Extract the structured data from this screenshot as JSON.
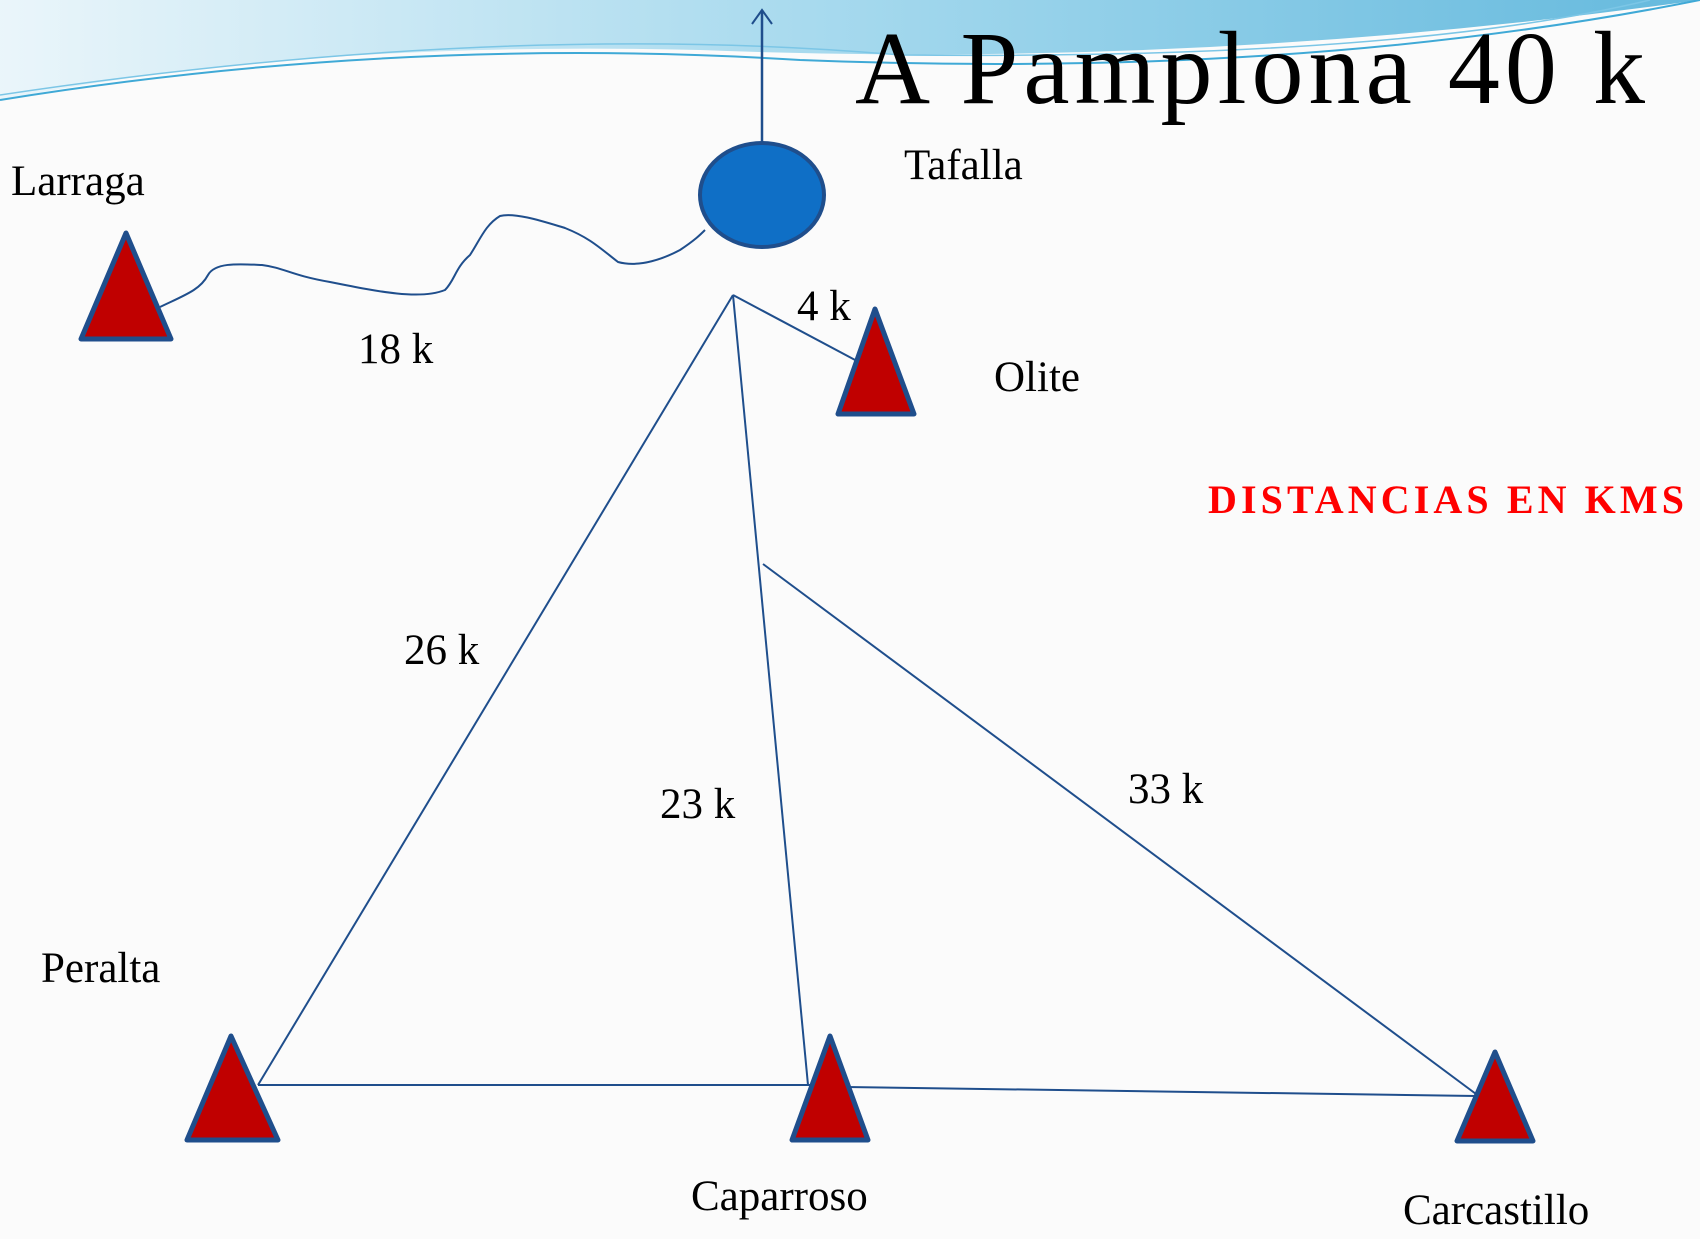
{
  "title": "A Pamplona 40 k",
  "note": "DISTANCIAS EN KMS",
  "nodes": [
    {
      "label": "Tafalla"
    },
    {
      "label": "Larraga"
    },
    {
      "label": "Olite"
    },
    {
      "label": "Peralta"
    },
    {
      "label": "Caparroso"
    },
    {
      "label": "Carcastillo"
    }
  ],
  "distances": [
    {
      "label": "18 k"
    },
    {
      "label": "4 k"
    },
    {
      "label": "26 k"
    },
    {
      "label": "23 k"
    },
    {
      "label": "33 k"
    }
  ]
}
